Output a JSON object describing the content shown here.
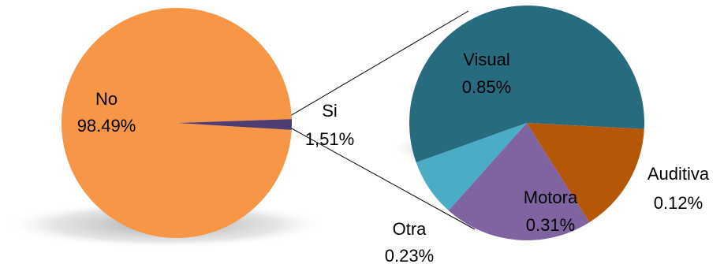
{
  "chart_data": [
    {
      "type": "pie",
      "slices": [
        {
          "label": "No",
          "value_text": "98.49%",
          "value": 98.49,
          "color": "#F79646"
        },
        {
          "label": "Si",
          "value_text": "1,51%",
          "value": 1.51,
          "color": "#4F3D72"
        }
      ]
    },
    {
      "type": "pie",
      "slices": [
        {
          "label": "Visual",
          "value_text": "0.85%",
          "value": 0.85,
          "color": "#276B7E"
        },
        {
          "label": "Auditiva",
          "value_text": "0.12%",
          "value": 0.12,
          "color": "#4BACC6"
        },
        {
          "label": "Motora",
          "value_text": "0.31%",
          "value": 0.31,
          "color": "#8064A2"
        },
        {
          "label": "Otra",
          "value_text": "0.23%",
          "value": 0.23,
          "color": "#B65708"
        }
      ]
    }
  ]
}
